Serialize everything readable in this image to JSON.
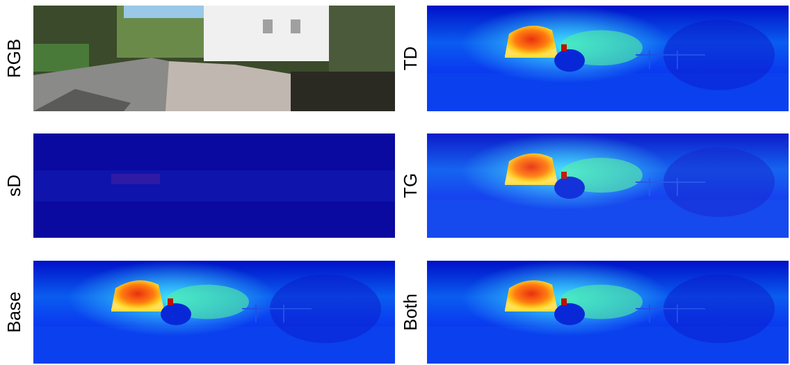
{
  "panels": [
    {
      "label": "RGB"
    },
    {
      "label": "TD"
    },
    {
      "label": "sD"
    },
    {
      "label": "TG"
    },
    {
      "label": "Base"
    },
    {
      "label": "Both"
    }
  ]
}
